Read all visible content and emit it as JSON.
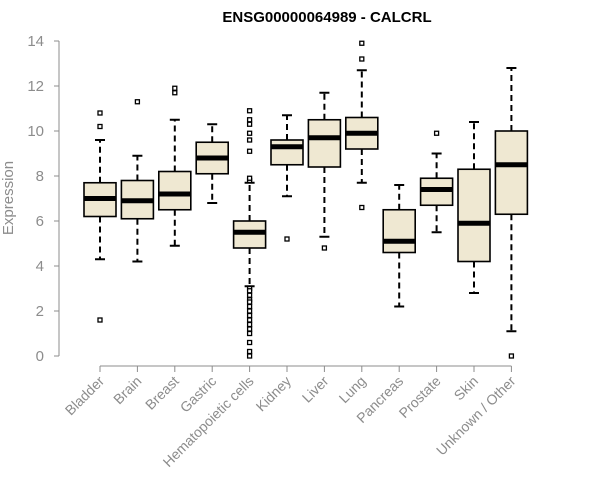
{
  "chart_data": {
    "type": "boxplot",
    "title": "ENSG00000064989 - CALCRL",
    "xlabel": "",
    "ylabel": "Expression",
    "ylim": [
      0,
      14
    ],
    "yticks": [
      0,
      2,
      4,
      6,
      8,
      10,
      12,
      14
    ],
    "grid": false,
    "colors": {
      "box_fill": "#efe8d2",
      "stroke": "#000000",
      "axis": "#8c8c8c"
    },
    "categories": [
      "Bladder",
      "Brain",
      "Breast",
      "Gastric",
      "Hematopoietic cells",
      "Kidney",
      "Liver",
      "Lung",
      "Pancreas",
      "Prostate",
      "Skin",
      "Unknown / Other"
    ],
    "boxes": [
      {
        "category": "Bladder",
        "whisker_low": 4.3,
        "q1": 6.2,
        "median": 7.0,
        "q3": 7.7,
        "whisker_high": 9.6,
        "outliers": [
          10.8,
          10.2,
          1.6
        ]
      },
      {
        "category": "Brain",
        "whisker_low": 4.2,
        "q1": 6.1,
        "median": 6.9,
        "q3": 7.8,
        "whisker_high": 8.9,
        "outliers": [
          11.3
        ]
      },
      {
        "category": "Breast",
        "whisker_low": 4.9,
        "q1": 6.5,
        "median": 7.2,
        "q3": 8.2,
        "whisker_high": 10.5,
        "outliers": [
          11.7,
          11.9
        ]
      },
      {
        "category": "Gastric",
        "whisker_low": 6.8,
        "q1": 8.1,
        "median": 8.8,
        "q3": 9.5,
        "whisker_high": 10.3,
        "outliers": []
      },
      {
        "category": "Hematopoietic cells",
        "whisker_low": 3.1,
        "q1": 4.8,
        "median": 5.5,
        "q3": 6.0,
        "whisker_high": 7.7,
        "outliers": [
          7.8,
          7.9,
          9.1,
          9.6,
          9.9,
          10.3,
          10.5,
          10.9,
          3.0,
          2.9,
          2.7,
          2.5,
          2.4,
          2.2,
          2.0,
          1.8,
          1.6,
          1.4,
          1.2,
          1.0,
          0.6,
          0.2,
          0.0
        ]
      },
      {
        "category": "Kidney",
        "whisker_low": 7.1,
        "q1": 8.5,
        "median": 9.3,
        "q3": 9.6,
        "whisker_high": 10.7,
        "outliers": [
          5.2
        ]
      },
      {
        "category": "Liver",
        "whisker_low": 5.3,
        "q1": 8.4,
        "median": 9.7,
        "q3": 10.5,
        "whisker_high": 11.7,
        "outliers": [
          4.8
        ]
      },
      {
        "category": "Lung",
        "whisker_low": 7.7,
        "q1": 9.2,
        "median": 9.9,
        "q3": 10.6,
        "whisker_high": 12.7,
        "outliers": [
          13.9,
          13.2,
          6.6
        ]
      },
      {
        "category": "Pancreas",
        "whisker_low": 2.2,
        "q1": 4.6,
        "median": 5.1,
        "q3": 6.5,
        "whisker_high": 7.6,
        "outliers": []
      },
      {
        "category": "Prostate",
        "whisker_low": 5.5,
        "q1": 6.7,
        "median": 7.4,
        "q3": 7.9,
        "whisker_high": 9.0,
        "outliers": [
          9.9
        ]
      },
      {
        "category": "Skin",
        "whisker_low": 2.8,
        "q1": 4.2,
        "median": 5.9,
        "q3": 8.3,
        "whisker_high": 10.4,
        "outliers": []
      },
      {
        "category": "Unknown / Other",
        "whisker_low": 1.1,
        "q1": 6.3,
        "median": 8.5,
        "q3": 10.0,
        "whisker_high": 12.8,
        "outliers": [
          0.0
        ]
      }
    ]
  }
}
